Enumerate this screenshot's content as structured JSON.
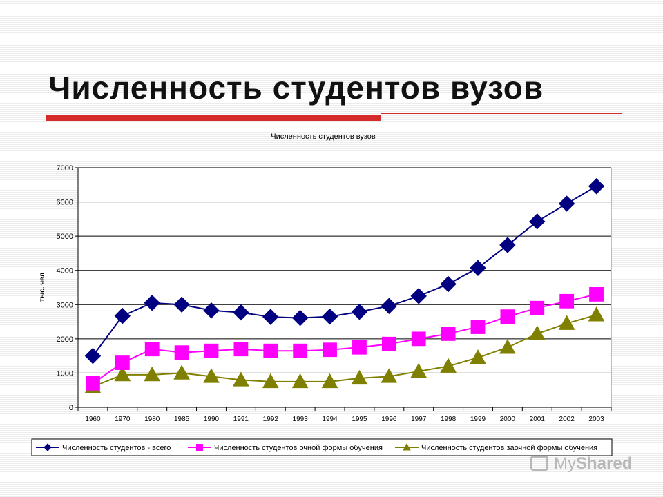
{
  "slide": {
    "title": "Численность студентов вузов"
  },
  "watermark": {
    "text_regular": "My",
    "text_bold": "Shared"
  },
  "chart_data": {
    "type": "line",
    "title": "Численность студентов вузов",
    "xlabel": "",
    "ylabel": "тыс. чел",
    "ylim": [
      0,
      7000
    ],
    "yticks": [
      0,
      1000,
      2000,
      3000,
      4000,
      5000,
      6000,
      7000
    ],
    "grid": true,
    "legend_position": "bottom",
    "categories": [
      "1960",
      "1970",
      "1980",
      "1985",
      "1990",
      "1991",
      "1992",
      "1993",
      "1994",
      "1995",
      "1996",
      "1997",
      "1998",
      "1999",
      "2000",
      "2001",
      "2002",
      "2003"
    ],
    "series": [
      {
        "name": "Численность студентов - всего",
        "color": "#000080",
        "marker": "diamond",
        "values": [
          1500,
          2670,
          3050,
          3000,
          2830,
          2770,
          2640,
          2610,
          2650,
          2790,
          2960,
          3250,
          3600,
          4070,
          4740,
          5430,
          5950,
          6460
        ]
      },
      {
        "name": "Численность студентов очной формы обучения",
        "color": "#ff00ff",
        "marker": "square",
        "values": [
          700,
          1300,
          1700,
          1600,
          1650,
          1700,
          1650,
          1650,
          1680,
          1750,
          1850,
          2000,
          2150,
          2350,
          2650,
          2900,
          3100,
          3300
        ]
      },
      {
        "name": "Численность студентов заочной формы обучения",
        "color": "#808000",
        "marker": "triangle",
        "values": [
          600,
          950,
          950,
          1000,
          900,
          800,
          750,
          750,
          750,
          850,
          900,
          1050,
          1200,
          1450,
          1750,
          2150,
          2450,
          2700
        ]
      }
    ]
  }
}
